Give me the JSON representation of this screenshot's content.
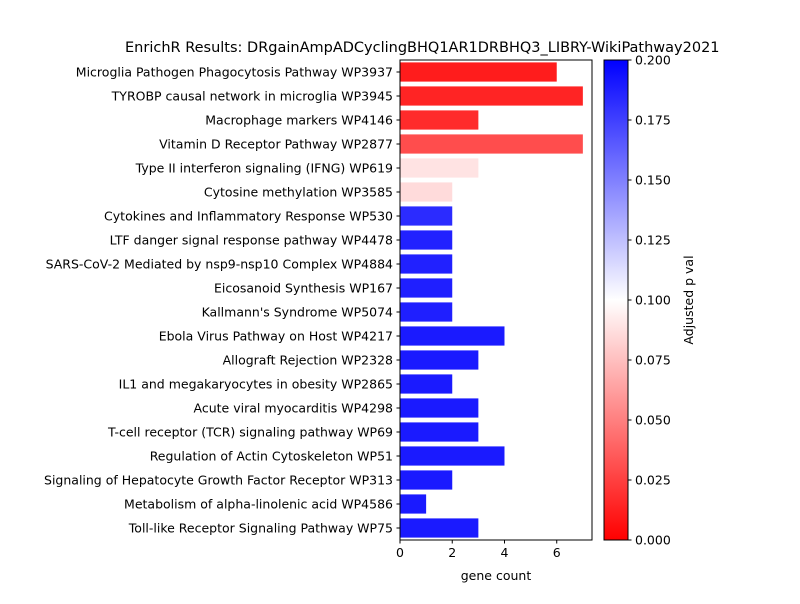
{
  "chart_data": {
    "type": "bar",
    "orientation": "horizontal",
    "title": "EnrichR Results: DRgainAmpADCyclingBHQ1AR1DRBHQ3_LIBRY-WikiPathway2021",
    "xlabel": "gene count",
    "ylabel": "",
    "xlim": [
      0,
      7.35
    ],
    "x_ticks": [
      0,
      2,
      4,
      6
    ],
    "x_tick_labels": [
      "0",
      "2",
      "4",
      "6"
    ],
    "grid": false,
    "colorbar": {
      "label": "Adjusted p val",
      "range": [
        0,
        0.2
      ],
      "colormap": "bwr_r",
      "color_stops": [
        "#ff0000",
        "#ffffff",
        "#0000ff"
      ],
      "ticks": [
        0.0,
        0.025,
        0.05,
        0.075,
        0.1,
        0.125,
        0.15,
        0.175,
        0.2
      ],
      "tick_labels": [
        "0.000",
        "0.025",
        "0.050",
        "0.075",
        "0.100",
        "0.125",
        "0.150",
        "0.175",
        "0.200"
      ]
    },
    "categories": [
      "Microglia Pathogen Phagocytosis Pathway WP3937",
      "TYROBP causal network in microglia WP3945",
      "Macrophage markers WP4146",
      "Vitamin D Receptor Pathway WP2877",
      "Type II interferon signaling (IFNG) WP619",
      "Cytosine methylation WP3585",
      "Cytokines and Inflammatory Response WP530",
      "LTF danger signal response pathway WP4478",
      "SARS-CoV-2 Mediated by nsp9-nsp10 Complex WP4884",
      "Eicosanoid Synthesis WP167",
      "Kallmann's Syndrome WP5074",
      "Ebola Virus Pathway on Host WP4217",
      "Allograft Rejection WP2328",
      "IL1 and megakaryocytes in obesity WP2865",
      "Acute viral myocarditis WP4298",
      "T-cell receptor (TCR) signaling pathway WP69",
      "Regulation of Actin Cytoskeleton WP51",
      "Signaling of Hepatocyte Growth Factor Receptor WP313",
      "Metabolism of alpha-linolenic acid WP4586",
      "Toll-like Receptor Signaling Pathway WP75"
    ],
    "values": [
      6,
      7,
      3,
      7,
      3,
      2,
      2,
      2,
      2,
      2,
      2,
      4,
      3,
      2,
      3,
      3,
      4,
      2,
      1,
      3
    ],
    "adjusted_p": [
      0.011,
      0.014,
      0.017,
      0.03,
      0.089,
      0.086,
      0.183,
      0.187,
      0.187,
      0.188,
      0.188,
      0.19,
      0.19,
      0.19,
      0.19,
      0.19,
      0.19,
      0.19,
      0.19,
      0.19
    ]
  }
}
